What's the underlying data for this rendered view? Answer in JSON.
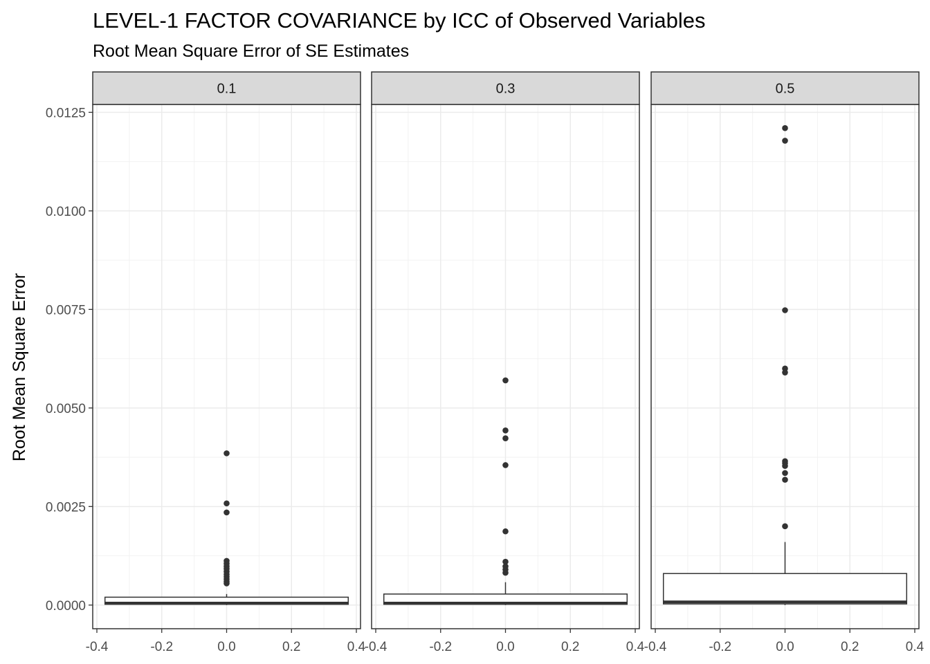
{
  "chart_data": {
    "type": "boxplot",
    "title": "LEVEL-1 FACTOR COVARIANCE by ICC of Observed Variables",
    "subtitle": "Root Mean Square Error of SE Estimates",
    "ylabel": "Root Mean Square Error",
    "xlabel": "",
    "xlim": [
      -0.4,
      0.4
    ],
    "ylim": [
      -0.0006,
      0.0127
    ],
    "x_ticks": [
      "-0.4",
      "-0.2",
      "0.0",
      "0.2",
      "0.4"
    ],
    "x_tick_values": [
      -0.4,
      -0.2,
      0.0,
      0.2,
      0.4
    ],
    "y_ticks": [
      "0.0000",
      "0.0025",
      "0.0050",
      "0.0075",
      "0.0100",
      "0.0125"
    ],
    "y_tick_values": [
      0.0,
      0.0025,
      0.005,
      0.0075,
      0.01,
      0.0125
    ],
    "grid": true,
    "box_x_range": [
      -0.375,
      0.375
    ],
    "facets": [
      {
        "label": "0.1",
        "box": {
          "lower_whisker": 0.0,
          "q1": 2e-05,
          "median": 5e-05,
          "q3": 0.0002,
          "upper_whisker": 0.00028
        },
        "outliers": [
          0.00385,
          0.00258,
          0.00235,
          0.00112,
          0.00105,
          0.00098,
          0.00092,
          0.00085,
          0.00078,
          0.00072,
          0.00066,
          0.0006,
          0.00055
        ]
      },
      {
        "label": "0.3",
        "box": {
          "lower_whisker": 0.0,
          "q1": 2e-05,
          "median": 5e-05,
          "q3": 0.00028,
          "upper_whisker": 0.00058
        },
        "outliers": [
          0.0057,
          0.00443,
          0.00423,
          0.00355,
          0.00187,
          0.0011,
          0.00098,
          0.0009,
          0.00082
        ]
      },
      {
        "label": "0.5",
        "box": {
          "lower_whisker": 0.0,
          "q1": 3e-05,
          "median": 8e-05,
          "q3": 0.0008,
          "upper_whisker": 0.0016
        },
        "outliers": [
          0.0121,
          0.01178,
          0.00748,
          0.006,
          0.0059,
          0.00365,
          0.0036,
          0.00353,
          0.00335,
          0.00318,
          0.002
        ]
      }
    ]
  }
}
